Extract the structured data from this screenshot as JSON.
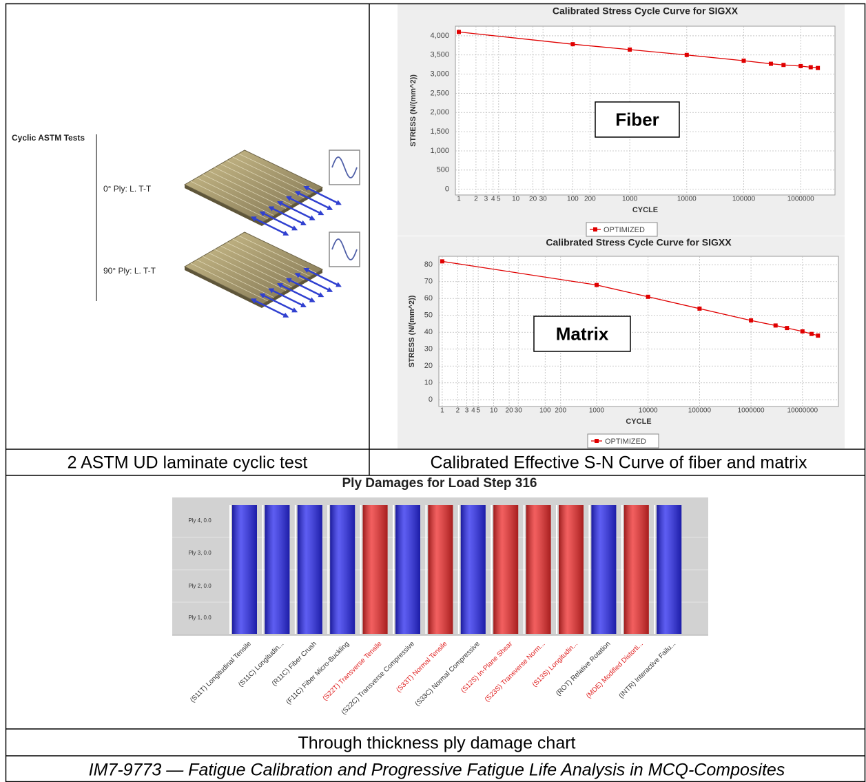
{
  "diagram": {
    "title": "Cyclic ASTM Tests",
    "plies": [
      "0° Ply: L. T-T",
      "90° Ply: L. T-T"
    ]
  },
  "chart_data": [
    {
      "type": "line",
      "title": "Calibrated Stress Cycle Curve for SIGXX",
      "annotation": "Fiber",
      "x_label": "CYCLE",
      "y_label": "STRESS (N/(mm^2))",
      "x_scale": "log",
      "grid": true,
      "x": [
        1,
        100,
        1000,
        10000,
        100000,
        300000,
        500000,
        1000000,
        1500000,
        2000000
      ],
      "series": [
        {
          "name": "OPTIMIZED",
          "color": "#e00000",
          "values": [
            4100,
            3780,
            3640,
            3500,
            3350,
            3270,
            3240,
            3210,
            3180,
            3160
          ]
        }
      ],
      "xlim": [
        0.87,
        4000000
      ],
      "xticks": [
        1,
        2,
        3,
        4,
        5,
        10,
        20,
        30,
        100,
        200,
        1000,
        10000,
        100000,
        1000000
      ],
      "ylim": [
        -150,
        4250
      ],
      "yticks": [
        0,
        500,
        {
          "value": 1000,
          "label": "1,000"
        },
        {
          "value": 1500,
          "label": "1,500"
        },
        {
          "value": 2000,
          "label": "2,000"
        },
        {
          "value": 2500,
          "label": "2,500"
        },
        {
          "value": 3000,
          "label": "3,000"
        },
        {
          "value": 3500,
          "label": "3,500"
        },
        {
          "value": 4000,
          "label": "4,000"
        }
      ]
    },
    {
      "type": "line",
      "title": "Calibrated Stress Cycle Curve for SIGXX",
      "annotation": "Matrix",
      "x_label": "CYCLE",
      "y_label": "STRESS (N/(mm^2))",
      "x_scale": "log",
      "grid": true,
      "x": [
        1,
        1000,
        10000,
        100000,
        1000000,
        3000000,
        5000000,
        10000000,
        15000000,
        20000000
      ],
      "series": [
        {
          "name": "OPTIMIZED",
          "color": "#e00000",
          "values": [
            82,
            68,
            61,
            54,
            47,
            44,
            42.5,
            40.5,
            39,
            38
          ]
        }
      ],
      "xlim": [
        0.86,
        50000000
      ],
      "xticks": [
        1,
        2,
        3,
        4,
        5,
        10,
        20,
        30,
        100,
        200,
        1000,
        10000,
        100000,
        1000000,
        10000000
      ],
      "ylim": [
        -4,
        85
      ],
      "yticks": [
        0,
        10,
        20,
        30,
        40,
        50,
        60,
        70,
        80
      ]
    }
  ],
  "captions": [
    "2 ASTM UD laminate cyclic test",
    "Calibrated Effective S-N Curve of fiber and matrix",
    "Through thickness ply damage chart"
  ],
  "damage_chart": {
    "title": "Ply Damages for Load Step 316",
    "rows": [
      "Ply 4, 0.0",
      "Ply 3, 0.0",
      "Ply 2, 0.0",
      "Ply 1, 0.0"
    ],
    "categories": [
      "(S11T) Longitudinal Tensile",
      "(S11C) Longitudin...",
      "(R11C) Fiber Crush",
      "(F11C) Fiber Micro-Buckling",
      "(S22T) Transverse Tensile",
      "(S22C) Transverse Compressive",
      "(S33T) Normal Tensile",
      "(S33C) Normal Compressive",
      "(S12S) In-Plane Shear",
      "(S23S) Transverse Norm...",
      "(S13S) Longitudin...",
      "(ROT) Relative Rotation",
      "(MDE) Modified Distorti...",
      "(INTR) Interactive Failu..."
    ],
    "colors": [
      "#2828ee",
      "#2828ee",
      "#2828ee",
      "#2828ee",
      "#ee2a2a",
      "#2828ee",
      "#ee2a2a",
      "#2828ee",
      "#ee2a2a",
      "#ee2a2a",
      "#ee2a2a",
      "#2828ee",
      "#ee2a2a",
      "#2828ee"
    ],
    "label_colors": [
      "#333333",
      "#333333",
      "#333333",
      "#333333",
      "#e02020",
      "#333333",
      "#e02020",
      "#333333",
      "#e02020",
      "#e02020",
      "#e02020",
      "#333333",
      "#e02020",
      "#333333"
    ]
  },
  "footer": "IM7-9773 — Fatigue Calibration and Progressive Fatigue Life Analysis in MCQ-Composites"
}
